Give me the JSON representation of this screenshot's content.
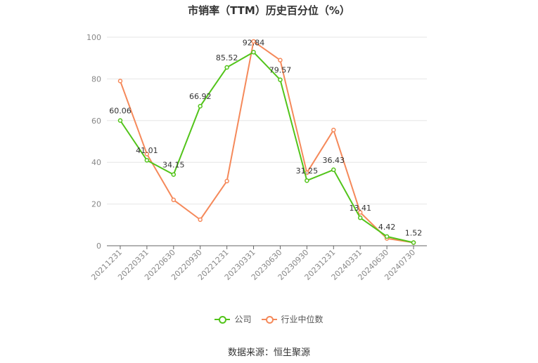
{
  "title": "市销率（TTM）历史百分位（%）",
  "source": "数据来源：恒生聚源",
  "colors": {
    "company": "#52c41a",
    "industry": "#f5895a",
    "grid": "#e6e6e6",
    "axis": "#999999"
  },
  "chart_data": {
    "type": "line",
    "categories": [
      "20211231",
      "20220331",
      "20220630",
      "20220930",
      "20221231",
      "20230331",
      "20230630",
      "20230930",
      "20231231",
      "20240331",
      "20240630",
      "20240730"
    ],
    "ylim": [
      0,
      100
    ],
    "yticks": [
      0,
      20,
      40,
      60,
      80,
      100
    ],
    "grid": true,
    "legend_position": "bottom",
    "series": [
      {
        "name": "公司",
        "values": [
          60.06,
          41.01,
          34.15,
          66.92,
          85.52,
          92.84,
          79.57,
          31.25,
          36.43,
          13.41,
          4.42,
          1.52
        ],
        "labels": [
          "60.06",
          "41.01",
          "34.15",
          "66.92",
          "85.52",
          "92.84",
          "79.57",
          "31.25",
          "36.43",
          "13.41",
          "4.42",
          "1.52"
        ]
      },
      {
        "name": "行业中位数",
        "values": [
          79,
          44,
          22,
          12.5,
          31,
          98,
          89,
          35,
          55.5,
          16,
          3.5,
          1.5
        ]
      }
    ]
  }
}
